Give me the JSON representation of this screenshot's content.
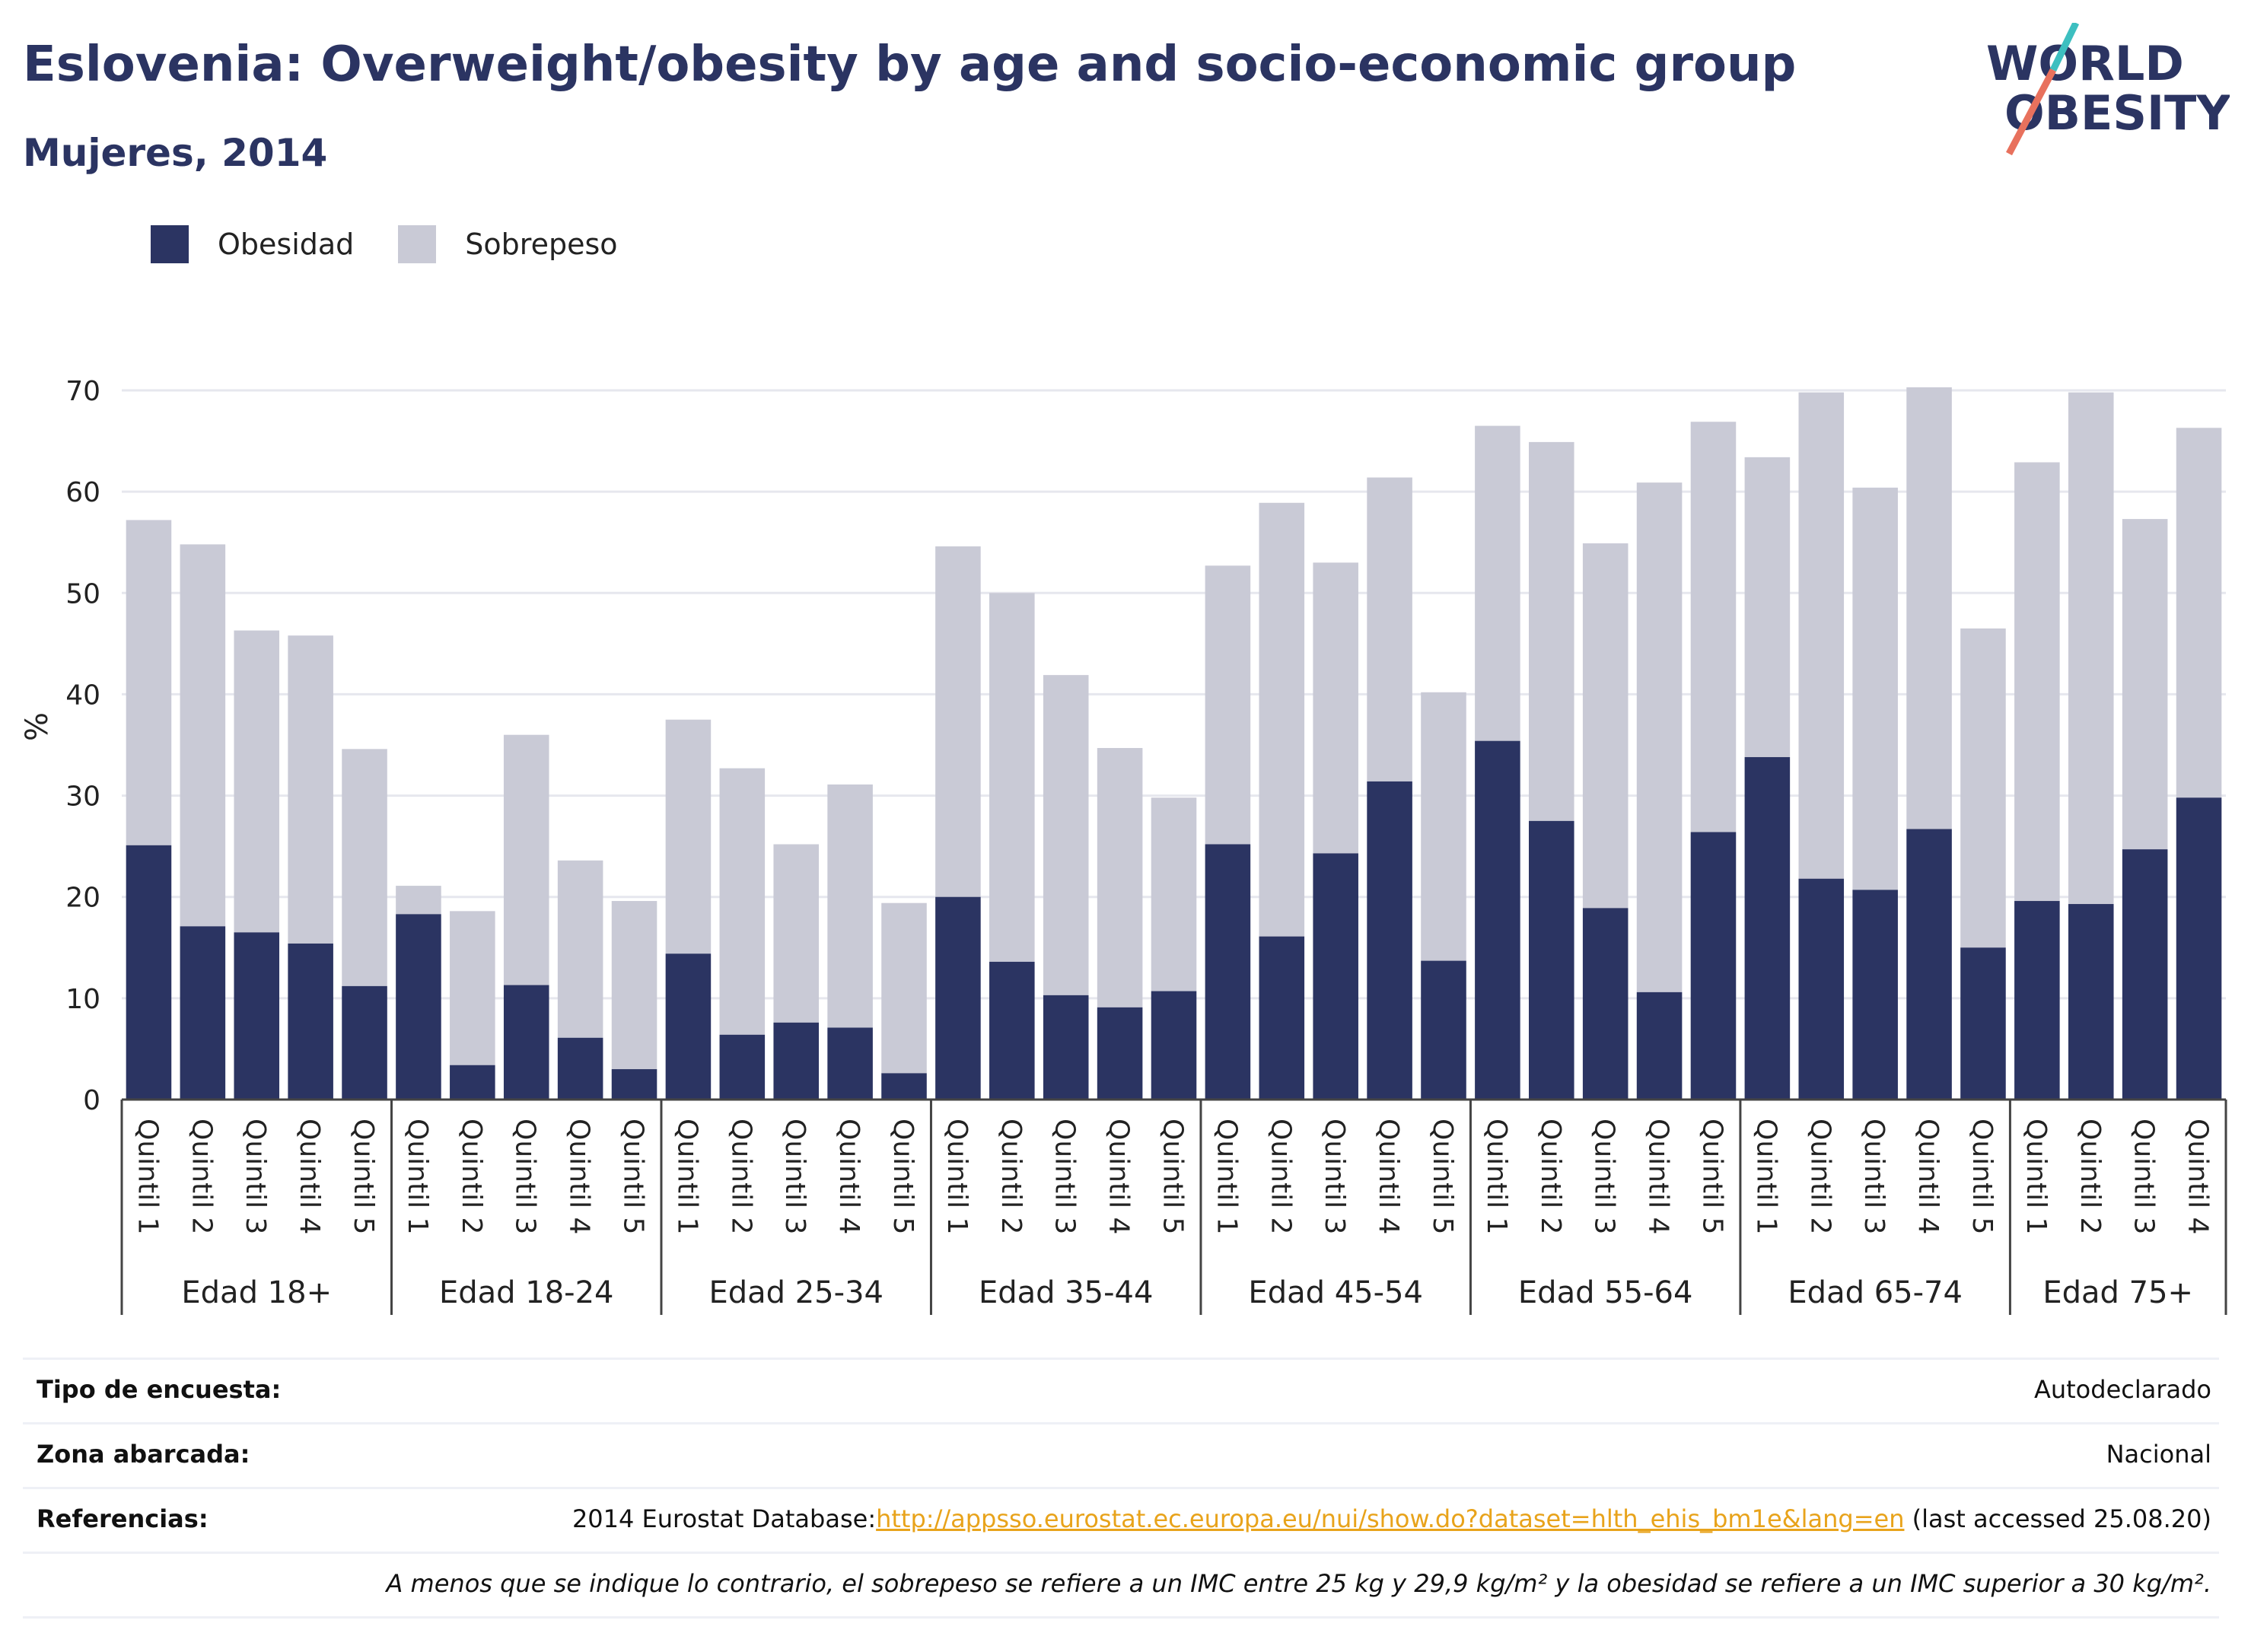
{
  "header": {
    "title": "Eslovenia: Overweight/obesity by age and socio-economic group",
    "subtitle": "Mujeres, 2014"
  },
  "logo": {
    "line1": "WORLD",
    "line2": "OBESITY",
    "colors": {
      "text": "#2b3462",
      "slash_top": "#3dbfc0",
      "slash_bottom": "#e8715d"
    }
  },
  "legend": [
    {
      "label": "Obesidad",
      "color": "#2b3462"
    },
    {
      "label": "Sobrepeso",
      "color": "#c9cad6"
    }
  ],
  "chart_data": {
    "type": "bar",
    "stacked": true,
    "ylabel": "%",
    "ylim": [
      0,
      70
    ],
    "yticks": [
      0,
      10,
      20,
      30,
      40,
      50,
      60,
      70
    ],
    "grid": true,
    "legend_position": "top-left",
    "colors": {
      "Obesidad": "#2b3462",
      "Sobrepeso": "#c9cad6"
    },
    "groups": [
      {
        "label": "Edad 18+",
        "categories": [
          "Quintil 1",
          "Quintil 2",
          "Quintil 3",
          "Quintil 4",
          "Quintil 5"
        ],
        "obesidad": [
          25.1,
          17.1,
          16.5,
          15.4,
          11.2
        ],
        "sobrepeso": [
          32.1,
          37.7,
          29.8,
          30.4,
          23.4
        ]
      },
      {
        "label": "Edad 18-24",
        "categories": [
          "Quintil 1",
          "Quintil 2",
          "Quintil 3",
          "Quintil 4",
          "Quintil 5"
        ],
        "obesidad": [
          18.3,
          3.4,
          11.3,
          6.1,
          3.0
        ],
        "sobrepeso": [
          2.8,
          15.2,
          24.7,
          17.5,
          16.6
        ]
      },
      {
        "label": "Edad 25-34",
        "categories": [
          "Quintil 1",
          "Quintil 2",
          "Quintil 3",
          "Quintil 4",
          "Quintil 5"
        ],
        "obesidad": [
          14.4,
          6.4,
          7.6,
          7.1,
          2.6
        ],
        "sobrepeso": [
          23.1,
          26.3,
          17.6,
          24.0,
          16.8
        ]
      },
      {
        "label": "Edad 35-44",
        "categories": [
          "Quintil 1",
          "Quintil 2",
          "Quintil 3",
          "Quintil 4",
          "Quintil 5"
        ],
        "obesidad": [
          20.0,
          13.6,
          10.3,
          9.1,
          10.7
        ],
        "sobrepeso": [
          34.6,
          36.4,
          31.6,
          25.6,
          19.1
        ]
      },
      {
        "label": "Edad 45-54",
        "categories": [
          "Quintil 1",
          "Quintil 2",
          "Quintil 3",
          "Quintil 4",
          "Quintil 5"
        ],
        "obesidad": [
          25.2,
          16.1,
          24.3,
          31.4,
          13.7
        ],
        "sobrepeso": [
          27.5,
          42.8,
          28.7,
          30.0,
          26.5
        ]
      },
      {
        "label": "Edad 55-64",
        "categories": [
          "Quintil 1",
          "Quintil 2",
          "Quintil 3",
          "Quintil 4",
          "Quintil 5"
        ],
        "obesidad": [
          35.4,
          27.5,
          18.9,
          10.6,
          26.4
        ],
        "sobrepeso": [
          31.1,
          37.4,
          36.0,
          50.3,
          40.5
        ]
      },
      {
        "label": "Edad 65-74",
        "categories": [
          "Quintil 1",
          "Quintil 2",
          "Quintil 3",
          "Quintil 4",
          "Quintil 5"
        ],
        "obesidad": [
          33.8,
          21.8,
          20.7,
          26.7,
          15.0
        ],
        "sobrepeso": [
          29.6,
          48.0,
          39.7,
          43.6,
          31.5
        ]
      },
      {
        "label": "Edad 75+",
        "categories": [
          "Quintil 1",
          "Quintil 2",
          "Quintil 3",
          "Quintil 4"
        ],
        "obesidad": [
          19.6,
          19.3,
          24.7,
          29.8
        ],
        "sobrepeso": [
          43.3,
          50.5,
          32.6,
          36.5
        ]
      }
    ]
  },
  "meta": {
    "rows": [
      {
        "label": "Tipo de encuesta:",
        "value": "Autodeclarado"
      },
      {
        "label": "Zona abarcada:",
        "value": "Nacional"
      },
      {
        "label": "Referencias:",
        "value_prefix": "2014 Eurostat Database:",
        "link": "http://appsso.eurostat.ec.europa.eu/nui/show.do?dataset=hlth_ehis_bm1e&lang=en",
        "value_suffix": " (last accessed 25.08.20)"
      }
    ],
    "note": "A menos que se indique lo contrario, el sobrepeso se refiere a un IMC entre 25 kg y 29,9 kg/m² y la obesidad se refiere a un IMC superior a 30 kg/m²."
  }
}
